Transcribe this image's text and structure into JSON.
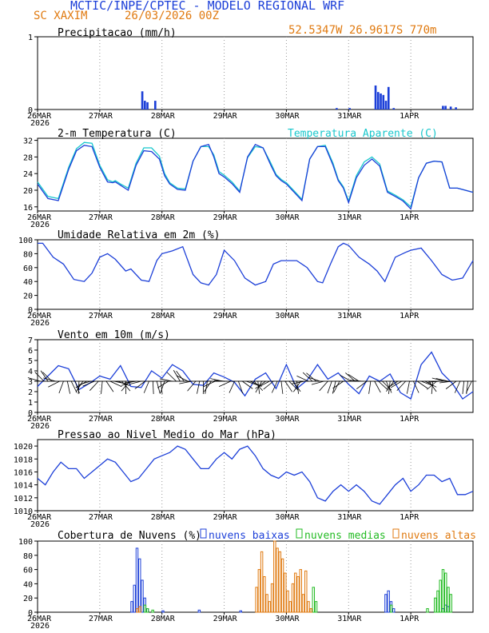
{
  "header": {
    "title": "MCTIC/INPE/CPTEC - MODELO REGIONAL WRF",
    "station": "SC XAXIM",
    "run": "26/03/2026 00Z",
    "location": "52.5347W 26.9617S 770m"
  },
  "colors": {
    "title": "#1c3fd8",
    "orange": "#e07a10",
    "blue": "#1c3fd8",
    "cyan": "#18c7cc",
    "green": "#22bb22"
  },
  "x_axis": {
    "labels": [
      "26MAR",
      "27MAR",
      "28MAR",
      "29MAR",
      "30MAR",
      "31MAR",
      "1APR"
    ],
    "year": "2026",
    "hours_total": 168
  },
  "chart_data": [
    {
      "type": "bar",
      "id": "precip",
      "title": "Precipitacao (mm/h)",
      "ylim": [
        0,
        1
      ],
      "yticks": [
        "0",
        "1"
      ],
      "points": [
        [
          40,
          0.25
        ],
        [
          41,
          0.12
        ],
        [
          42,
          0.1
        ],
        [
          45,
          0.12
        ],
        [
          115,
          0.02
        ],
        [
          120,
          0.02
        ],
        [
          130,
          0.33
        ],
        [
          131,
          0.24
        ],
        [
          132,
          0.22
        ],
        [
          133,
          0.2
        ],
        [
          134,
          0.12
        ],
        [
          135,
          0.31
        ],
        [
          137,
          0.02
        ],
        [
          156,
          0.05
        ],
        [
          157,
          0.05
        ],
        [
          159,
          0.04
        ],
        [
          161,
          0.03
        ]
      ]
    },
    {
      "type": "line",
      "id": "temp",
      "title": "2-m Temperatura (C)",
      "legend": "Temperatura Aparente (C)",
      "ylim": [
        15,
        32.5
      ],
      "yticks": [
        "16",
        "20",
        "24",
        "28",
        "32"
      ],
      "series": [
        {
          "name": "2-m Temperatura",
          "x": [
            0,
            4,
            8,
            12,
            15,
            18,
            21,
            24,
            27,
            29,
            30,
            32,
            35,
            38,
            41,
            44,
            47,
            49,
            51,
            54,
            57,
            60,
            63,
            66,
            68,
            70,
            72,
            75,
            78,
            81,
            84,
            87,
            90,
            92,
            94,
            96,
            99,
            102,
            105,
            108,
            111,
            114,
            116,
            118,
            120,
            123,
            126,
            129,
            132,
            135,
            138,
            141,
            144,
            147,
            150,
            153,
            156,
            159,
            162,
            165,
            168
          ],
          "y": [
            21.5,
            18,
            17.5,
            25,
            29.5,
            30.8,
            30.5,
            25.5,
            22,
            21.8,
            22,
            21.2,
            20,
            26,
            29.5,
            29.3,
            27.5,
            23.5,
            21.5,
            20.2,
            20,
            27,
            30.5,
            31,
            28,
            24,
            23.2,
            21.6,
            19.5,
            28,
            31,
            30.2,
            26,
            23.5,
            22.3,
            21.5,
            19.5,
            17.5,
            27.5,
            30.5,
            30.5,
            26,
            22.3,
            20.5,
            17,
            23,
            26,
            27.5,
            25.8,
            19.5,
            18.5,
            17.4,
            15.5,
            23,
            26.5,
            27,
            26.8,
            20.5,
            20.5,
            20,
            19.5
          ]
        },
        {
          "name": "Temperatura Aparente (C)",
          "x": [
            0,
            4,
            8,
            12,
            15,
            18,
            21,
            24,
            27,
            29,
            30,
            32,
            35,
            38,
            41,
            44,
            47,
            49,
            51,
            54,
            57,
            60,
            63,
            66,
            68,
            70,
            72,
            75,
            78,
            81,
            84,
            87,
            90,
            92,
            94,
            96,
            99,
            102,
            105,
            108,
            111,
            114,
            116,
            118,
            120,
            123,
            126,
            129,
            132,
            135,
            138,
            141,
            144,
            147,
            150,
            153,
            156,
            159,
            162,
            165,
            168
          ],
          "y": [
            22,
            18.5,
            18,
            25.5,
            30,
            31.5,
            31.3,
            26,
            22.5,
            22,
            22.3,
            21.5,
            20.5,
            26.5,
            30.2,
            30.2,
            28.2,
            24,
            21.8,
            20.5,
            20.3,
            27,
            30.5,
            30.5,
            28.5,
            24.5,
            23.6,
            22,
            19.8,
            27.8,
            30.5,
            30.2,
            26.5,
            23.8,
            22.6,
            21.8,
            19.8,
            17.8,
            27.5,
            30.5,
            30.8,
            26.5,
            22.6,
            20.8,
            17.4,
            23.5,
            26.8,
            28,
            26.3,
            19.8,
            18.8,
            17.7,
            16,
            23,
            26.5,
            27,
            26.8,
            20.5,
            20.5,
            20,
            19.5
          ]
        }
      ]
    },
    {
      "type": "line",
      "id": "rh",
      "title": "Umidade Relativa em 2m (%)",
      "ylim": [
        0,
        100
      ],
      "yticks": [
        "0",
        "20",
        "40",
        "60",
        "80",
        "100"
      ],
      "series": [
        {
          "name": "Umidade Relativa",
          "x": [
            0,
            2,
            6,
            10,
            14,
            18,
            21,
            24,
            27,
            30,
            34,
            36,
            40,
            43,
            46,
            48,
            52,
            56,
            60,
            63,
            66,
            69,
            72,
            76,
            80,
            84,
            88,
            91,
            94,
            96,
            100,
            104,
            108,
            110,
            113,
            116,
            118,
            120,
            124,
            128,
            131,
            134,
            138,
            142,
            144,
            148,
            152,
            156,
            160,
            164,
            168
          ],
          "y": [
            95,
            95,
            75,
            65,
            43,
            40,
            52,
            75,
            80,
            72,
            55,
            58,
            42,
            40,
            70,
            80,
            84,
            90,
            50,
            38,
            35,
            50,
            85,
            70,
            45,
            35,
            40,
            65,
            70,
            70,
            70,
            60,
            40,
            38,
            65,
            90,
            95,
            92,
            75,
            65,
            55,
            40,
            75,
            82,
            85,
            88,
            70,
            50,
            42,
            45,
            70
          ]
        }
      ]
    },
    {
      "type": "line",
      "id": "wind",
      "title": "Vento em 10m (m/s)",
      "ylim": [
        0,
        7
      ],
      "yticks": [
        "0",
        "1",
        "2",
        "3",
        "4",
        "5",
        "6",
        "7"
      ],
      "series": [
        {
          "name": "Vento em 10m",
          "x": [
            0,
            4,
            8,
            12,
            16,
            20,
            24,
            28,
            32,
            36,
            40,
            44,
            48,
            52,
            56,
            60,
            64,
            68,
            72,
            76,
            80,
            84,
            88,
            92,
            96,
            100,
            104,
            108,
            112,
            116,
            120,
            124,
            128,
            132,
            136,
            140,
            144,
            148,
            152,
            156,
            160,
            164,
            168
          ],
          "y": [
            2.5,
            3.5,
            4.5,
            4.2,
            2.2,
            2.8,
            3.5,
            3.2,
            4.5,
            2.5,
            2.4,
            4,
            3.3,
            4.6,
            4,
            2.7,
            2.6,
            3.8,
            3.4,
            2.9,
            1.6,
            3.2,
            3.8,
            2.3,
            4.6,
            2.3,
            3.1,
            4.6,
            3.2,
            3.8,
            2.7,
            1.8,
            3.5,
            3,
            3.7,
            1.9,
            1.3,
            4.6,
            5.8,
            3.8,
            2.8,
            1.3,
            2
          ]
        }
      ]
    },
    {
      "type": "line",
      "id": "pres",
      "title": "Pressao ao Nivel Medio do Mar (hPa)",
      "ylim": [
        1010,
        1021
      ],
      "yticks": [
        "1010",
        "1012",
        "1014",
        "1016",
        "1018",
        "1020"
      ],
      "series": [
        {
          "name": "Pressao",
          "x": [
            0,
            3,
            6,
            9,
            12,
            15,
            18,
            21,
            24,
            27,
            30,
            33,
            36,
            39,
            42,
            45,
            48,
            51,
            54,
            57,
            60,
            63,
            66,
            69,
            72,
            75,
            78,
            81,
            84,
            87,
            90,
            93,
            96,
            99,
            102,
            105,
            108,
            111,
            114,
            117,
            120,
            123,
            126,
            129,
            132,
            135,
            138,
            141,
            144,
            147,
            150,
            153,
            156,
            159,
            162,
            165,
            168
          ],
          "y": [
            1015,
            1014,
            1016,
            1017.5,
            1016.5,
            1016.5,
            1015,
            1016,
            1017,
            1018,
            1017.5,
            1016,
            1014.5,
            1015,
            1016.5,
            1018,
            1018.5,
            1019,
            1020,
            1019.5,
            1018,
            1016.5,
            1016.5,
            1018,
            1019,
            1018,
            1019.5,
            1020,
            1018.5,
            1016.5,
            1015.5,
            1015,
            1016,
            1015.5,
            1016,
            1014.5,
            1012,
            1011.5,
            1013,
            1014,
            1013,
            1014,
            1013,
            1011.5,
            1011,
            1012.5,
            1014,
            1015,
            1013,
            1014,
            1015.5,
            1015.5,
            1014.5,
            1015,
            1012.5,
            1012.5,
            1013
          ]
        }
      ]
    },
    {
      "type": "bar",
      "id": "cloud",
      "title": "Cobertura de Nuvens (%)",
      "legend": [
        "nuvens baixas",
        "nuvens medias",
        "nuvens altas"
      ],
      "ylim": [
        0,
        100
      ],
      "yticks": [
        "0",
        "20",
        "40",
        "60",
        "80",
        "100"
      ],
      "series": [
        {
          "name": "nuvens baixas",
          "points": [
            [
              36,
              15
            ],
            [
              37,
              38
            ],
            [
              38,
              90
            ],
            [
              39,
              75
            ],
            [
              40,
              45
            ],
            [
              41,
              20
            ],
            [
              42,
              5
            ],
            [
              48,
              2
            ],
            [
              62,
              3
            ],
            [
              78,
              2
            ],
            [
              134,
              25
            ],
            [
              135,
              30
            ],
            [
              136,
              15
            ],
            [
              137,
              5
            ],
            [
              156,
              5
            ],
            [
              157,
              10
            ],
            [
              158,
              8
            ]
          ]
        },
        {
          "name": "nuvens medias",
          "points": [
            [
              41,
              10
            ],
            [
              42,
              5
            ],
            [
              44,
              3
            ],
            [
              105,
              5
            ],
            [
              106,
              35
            ],
            [
              107,
              15
            ],
            [
              136,
              10
            ],
            [
              150,
              5
            ],
            [
              153,
              20
            ],
            [
              154,
              30
            ],
            [
              155,
              45
            ],
            [
              156,
              60
            ],
            [
              157,
              55
            ],
            [
              158,
              35
            ],
            [
              159,
              25
            ]
          ]
        },
        {
          "name": "nuvens altas",
          "points": [
            [
              38,
              5
            ],
            [
              39,
              8
            ],
            [
              84,
              35
            ],
            [
              85,
              60
            ],
            [
              86,
              85
            ],
            [
              87,
              50
            ],
            [
              88,
              25
            ],
            [
              89,
              15
            ],
            [
              90,
              40
            ],
            [
              91,
              100
            ],
            [
              92,
              90
            ],
            [
              93,
              85
            ],
            [
              94,
              75
            ],
            [
              95,
              55
            ],
            [
              96,
              30
            ],
            [
              97,
              15
            ],
            [
              98,
              40
            ],
            [
              99,
              55
            ],
            [
              100,
              50
            ],
            [
              101,
              60
            ],
            [
              102,
              25
            ],
            [
              103,
              58
            ],
            [
              104,
              15
            ],
            [
              105,
              5
            ]
          ]
        }
      ]
    }
  ]
}
